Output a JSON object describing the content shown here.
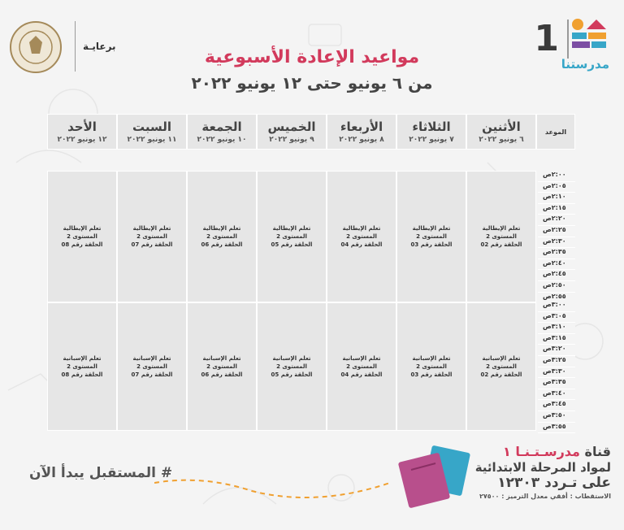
{
  "header": {
    "title": "مواعيد الإعادة الأسبوعية",
    "subtitle": "من ٦ يونيو حتى ١٢ يونيو ٢٠٢٢",
    "sponsor_label": "برعايـة",
    "logo_number": "1",
    "logo_word": "مدرستنا"
  },
  "table": {
    "time_column_label": "الموعد",
    "days": [
      {
        "name": "الأثنين",
        "date": "٦ يونيو ٢٠٢٢"
      },
      {
        "name": "الثلاثاء",
        "date": "٧ يونيو ٢٠٢٢"
      },
      {
        "name": "الأربعاء",
        "date": "٨ يونيو ٢٠٢٢"
      },
      {
        "name": "الخميس",
        "date": "٩ يونيو ٢٠٢٢"
      },
      {
        "name": "الجمعة",
        "date": "١٠ يونيو ٢٠٢٢"
      },
      {
        "name": "السبت",
        "date": "١١ يونيو ٢٠٢٢"
      },
      {
        "name": "الأحد",
        "date": "١٢ يونيو ٢٠٢٢"
      }
    ],
    "blocks": [
      {
        "times": [
          "٢:٠٠ص",
          "٢:٠٥ص",
          "٢:١٠ص",
          "٢:١٥ص",
          "٢:٢٠ص",
          "٢:٢٥ص",
          "٢:٣٠ص",
          "٢:٣٥ص",
          "٢:٤٠ص",
          "٢:٤٥ص",
          "٢:٥٠ص",
          "٢:٥٥ص"
        ],
        "cells": [
          {
            "subject": "تعلم الإيطالية",
            "level": "المستوى 2",
            "episode": "الحلقة رقم 02"
          },
          {
            "subject": "تعلم الإيطالية",
            "level": "المستوى 2",
            "episode": "الحلقة رقم 03"
          },
          {
            "subject": "تعلم الإيطالية",
            "level": "المستوى 2",
            "episode": "الحلقة رقم 04"
          },
          {
            "subject": "تعلم الإيطالية",
            "level": "المستوى 2",
            "episode": "الحلقة رقم 05"
          },
          {
            "subject": "تعلم الإيطالية",
            "level": "المستوى 2",
            "episode": "الحلقة رقم 06"
          },
          {
            "subject": "تعلم الإيطالية",
            "level": "المستوى 2",
            "episode": "الحلقة رقم 07"
          },
          {
            "subject": "تعلم الإيطالية",
            "level": "المستوى 2",
            "episode": "الحلقة رقم 08"
          }
        ]
      },
      {
        "times": [
          "٣:٠٠ص",
          "٣:٠٥ص",
          "٣:١٠ص",
          "٣:١٥ص",
          "٣:٢٠ص",
          "٣:٢٥ص",
          "٣:٣٠ص",
          "٣:٣٥ص",
          "٣:٤٠ص",
          "٣:٤٥ص",
          "٣:٥٠ص",
          "٣:٥٥ص"
        ],
        "cells": [
          {
            "subject": "تعلم الإسبانية",
            "level": "المستوى 2",
            "episode": "الحلقة رقم 02"
          },
          {
            "subject": "تعلم الإسبانية",
            "level": "المستوى 2",
            "episode": "الحلقة رقم 03"
          },
          {
            "subject": "تعلم الإسبانية",
            "level": "المستوى 2",
            "episode": "الحلقة رقم 04"
          },
          {
            "subject": "تعلم الإسبانية",
            "level": "المستوى 2",
            "episode": "الحلقة رقم 05"
          },
          {
            "subject": "تعلم الإسبانية",
            "level": "المستوى 2",
            "episode": "الحلقة رقم 06"
          },
          {
            "subject": "تعلم الإسبانية",
            "level": "المستوى 2",
            "episode": "الحلقة رقم 07"
          },
          {
            "subject": "تعلم الإسبانية",
            "level": "المستوى 2",
            "episode": "الحلقة رقم 08"
          }
        ]
      }
    ]
  },
  "footer": {
    "slogan": "# المستقبل يبدأ الآن",
    "channel_prefix": "قناة",
    "channel_name": "مدرسـتـنـا ١",
    "channel_line2": "لمواد المرحلة الابتدائية",
    "channel_line3": "على تـردد ١٢٣٠٣",
    "channel_line4": "الاستقطاب : أفقي معدل الترميز : ٢٧٥٠٠"
  },
  "colors": {
    "accent": "#d23a5c",
    "cell_bg": "#e6e6e6",
    "logo_blue": "#37a6c8"
  }
}
